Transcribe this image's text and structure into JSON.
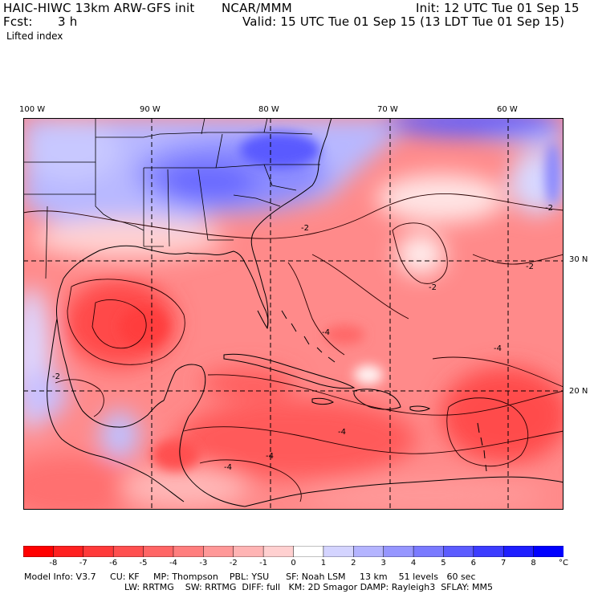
{
  "header": {
    "model": "HAIC-HIWC 13km ARW-GFS init",
    "org": "NCAR/MMM",
    "init": "Init: 12 UTC Tue 01 Sep 15",
    "fcst_label": "Fcst:",
    "fcst_value": "3 h",
    "valid": "Valid: 15 UTC Tue 01 Sep 15 (13 LDT Tue 01 Sep 15)",
    "field": "Lifted index"
  },
  "map": {
    "lon_labels": [
      "100 W",
      "90 W",
      "80 W",
      "70 W",
      "60 W"
    ],
    "lat_labels": [
      "30 N",
      "20 N"
    ],
    "contour_labels": [
      "-2",
      "-2",
      "-2",
      "-2",
      "-4",
      "-4",
      "-4",
      "-4",
      "-4",
      "-2"
    ]
  },
  "colorbar": {
    "labels": [
      "-8",
      "-7",
      "-6",
      "-5",
      "-4",
      "-3",
      "-2",
      "-1",
      "0",
      "1",
      "2",
      "3",
      "4",
      "5",
      "6",
      "7",
      "8"
    ],
    "unit": "°C",
    "colors": [
      "#ff0000",
      "#ff2020",
      "#ff3a3a",
      "#ff5050",
      "#ff6666",
      "#ff7e7e",
      "#ff9898",
      "#ffb4b4",
      "#ffd0d0",
      "#ffffff",
      "#d4d4ff",
      "#b4b4ff",
      "#9696ff",
      "#7a7aff",
      "#5c5cff",
      "#3c3cff",
      "#1e1eff",
      "#0000ff"
    ]
  },
  "model_info": {
    "line1": "Model Info: V3.7     CU: KF     MP: Thompson    PBL: YSU      SF: Noah LSM     13 km    51 levels   60 sec",
    "line2": "LW: RRTMG    SW: RRTMG  DIFF: full   KM: 2D Smagor DAMP: Rayleigh3  SFLAY: MM5"
  }
}
